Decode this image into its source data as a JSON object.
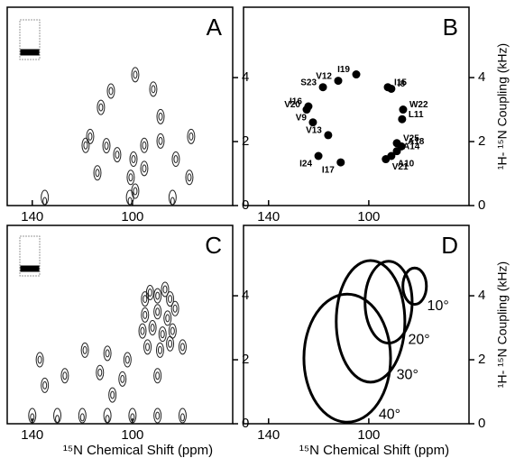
{
  "chart_data": [
    {
      "type": "spectrum",
      "panel": "A",
      "x": [
        98.9,
        91.7,
        108.6,
        112.6,
        116.9,
        118.7,
        88.8,
        88.8,
        95.3,
        99.6,
        106.1,
        100.7,
        95.3,
        76.6,
        82.7,
        77.3,
        98.9,
        114.0,
        110.4,
        135,
        101,
        84
      ],
      "values": [
        4.09,
        3.64,
        3.58,
        3.07,
        2.16,
        1.88,
        2.78,
        2.02,
        1.88,
        1.45,
        1.59,
        0.88,
        1.16,
        2.16,
        1.45,
        0.88,
        0.45,
        1.02,
        1.87,
        0.1,
        0.1,
        0.1
      ],
      "xlim": [
        150,
        60
      ],
      "ylim": [
        0,
        6.2
      ],
      "xticks": [
        140,
        100
      ],
      "yticks": [
        0,
        2,
        4
      ]
    },
    {
      "type": "scatter",
      "panel": "B",
      "y_label": "¹H- ¹⁵N Coupling (kHz)",
      "point_labels": [
        "I19",
        "V12",
        "S23",
        "I15",
        "I8",
        "I16",
        "V20",
        "V9",
        "W22",
        "L11",
        "V13",
        "V25",
        "A18",
        "A14",
        "A10",
        "V21",
        "I24",
        "I17"
      ],
      "x": [
        105,
        112.2,
        118.3,
        92.4,
        91,
        124.1,
        124.8,
        122.3,
        86.3,
        86.7,
        116.2,
        88.8,
        87,
        88.8,
        91,
        93.2,
        120.1,
        111.2
      ],
      "values": [
        4.1,
        3.9,
        3.7,
        3.7,
        3.65,
        3.1,
        3.0,
        2.6,
        3.0,
        2.7,
        2.2,
        1.95,
        1.85,
        1.7,
        1.55,
        1.45,
        1.55,
        1.35
      ],
      "xlim": [
        150,
        60
      ],
      "ylim": [
        0,
        6.2
      ],
      "xticks": [
        140,
        100
      ],
      "yticks": [
        0,
        2,
        4
      ]
    },
    {
      "type": "spectrum",
      "panel": "C",
      "x_label": "¹⁵N Chemical Shift (ppm)",
      "x": [
        95,
        93,
        90,
        87,
        85,
        95,
        90,
        86,
        83,
        96,
        92,
        88,
        84,
        94,
        89,
        85,
        80,
        110,
        113,
        127,
        137,
        135,
        119,
        104,
        90,
        102,
        108,
        140,
        130,
        120,
        110,
        100,
        90,
        80
      ],
      "values": [
        3.9,
        4.1,
        4.0,
        4.2,
        3.9,
        3.4,
        3.5,
        3.3,
        3.6,
        2.9,
        3.0,
        2.8,
        2.9,
        2.4,
        2.3,
        2.5,
        2.4,
        2.2,
        1.6,
        1.5,
        2.0,
        1.2,
        2.3,
        1.4,
        1.5,
        2.0,
        0.9,
        0.2,
        0.15,
        0.2,
        0.15,
        0.2,
        0.25,
        0.2
      ],
      "xlim": [
        150,
        60
      ],
      "ylim": [
        0,
        6.2
      ],
      "xticks": [
        140,
        100
      ],
      "yticks": [
        0,
        2,
        4
      ]
    },
    {
      "type": "ellipse",
      "panel": "D",
      "x_label": "¹⁵N Chemical Shift (ppm)",
      "y_label": "¹H- ¹⁵N Coupling (kHz)",
      "ellipses": [
        {
          "label": "10°",
          "cx": 81.7,
          "cy": 4.3,
          "rx": 4.7,
          "ry": 0.57
        },
        {
          "label": "20°",
          "cx": 92.1,
          "cy": 3.8,
          "rx": 9.4,
          "ry": 1.28
        },
        {
          "label": "30°",
          "cx": 99.3,
          "cy": 3.2,
          "rx": 13.7,
          "ry": 1.9
        },
        {
          "label": "40°",
          "cx": 108.6,
          "cy": 2.05,
          "rx": 17.3,
          "ry": 2.0
        }
      ],
      "xlim": [
        150,
        60
      ],
      "ylim": [
        0,
        6.2
      ],
      "xticks": [
        140,
        100
      ],
      "yticks": [
        0,
        2,
        4
      ]
    }
  ]
}
